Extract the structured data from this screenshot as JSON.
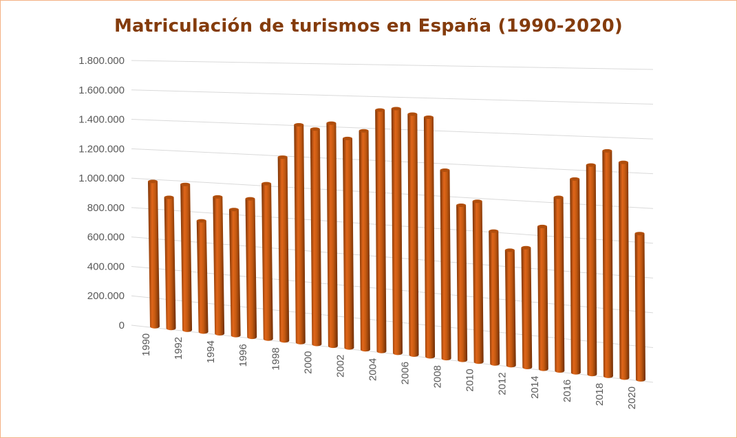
{
  "chart_data": {
    "type": "bar",
    "style": "3d-cylinder",
    "title": "Matriculación de turismos en España (1990-2020)",
    "xlabel": "",
    "ylabel": "",
    "ylim": [
      0,
      1800000
    ],
    "grid": true,
    "legend": "none",
    "color": "#c55a11",
    "y_ticks": [
      "0",
      "200.000",
      "400.000",
      "600.000",
      "800.000",
      "1.000.000",
      "1.200.000",
      "1.400.000",
      "1.600.000",
      "1.800.000"
    ],
    "x_tick_labels": [
      "1990",
      "1992",
      "1994",
      "1996",
      "1998",
      "2000",
      "2002",
      "2004",
      "2006",
      "2008",
      "2010",
      "2012",
      "2014",
      "2016",
      "2018",
      "2020"
    ],
    "categories": [
      "1990",
      "1991",
      "1992",
      "1993",
      "1994",
      "1995",
      "1996",
      "1997",
      "1998",
      "1999",
      "2000",
      "2001",
      "2002",
      "2003",
      "2004",
      "2005",
      "2006",
      "2007",
      "2008",
      "2009",
      "2010",
      "2011",
      "2012",
      "2013",
      "2014",
      "2015",
      "2016",
      "2017",
      "2018",
      "2019",
      "2020"
    ],
    "values": [
      987000,
      887000,
      980000,
      745000,
      910000,
      834000,
      911000,
      1016000,
      1193000,
      1406000,
      1382000,
      1424000,
      1331000,
      1383000,
      1517000,
      1529000,
      1498000,
      1482000,
      1161000,
      952000,
      982000,
      808000,
      700000,
      722000,
      855000,
      1034000,
      1147000,
      1234000,
      1321000,
      1258000,
      851000
    ]
  }
}
